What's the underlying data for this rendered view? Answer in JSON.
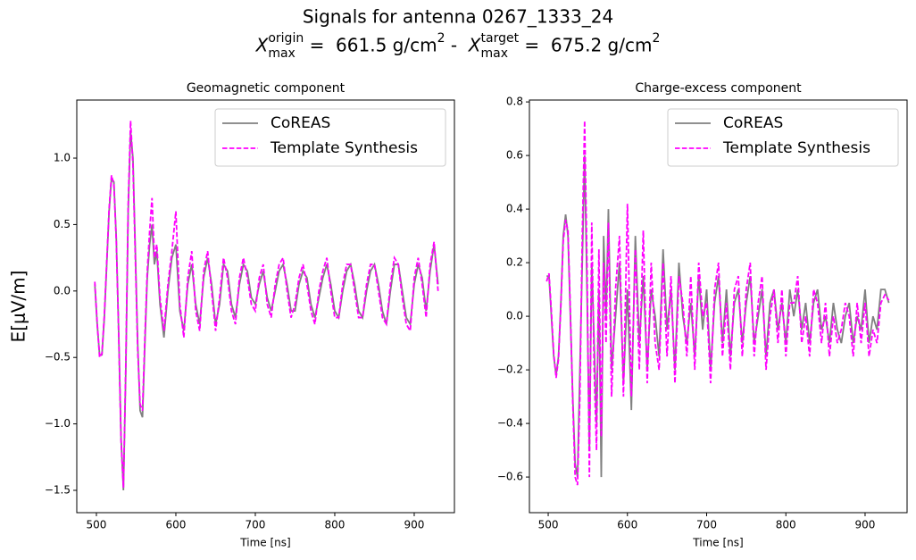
{
  "figure": {
    "title": "Signals for antenna 0267_1333_24",
    "subtitle_parts": [
      {
        "text": "X",
        "style": "italic"
      },
      {
        "text": "origin",
        "style": "sup"
      },
      {
        "text": "max",
        "style": "sub"
      },
      {
        "text": " =  661.5 g/cm",
        "style": "normal"
      },
      {
        "text": "2",
        "style": "sup"
      },
      {
        "text": " -  ",
        "style": "normal"
      },
      {
        "text": "X",
        "style": "italic"
      },
      {
        "text": "target",
        "style": "sup"
      },
      {
        "text": "max",
        "style": "sub"
      },
      {
        "text": " =  675.2 g/cm",
        "style": "normal"
      },
      {
        "text": "2",
        "style": "sup"
      }
    ]
  },
  "chart_data": [
    {
      "type": "line",
      "title": "Geomagnetic component",
      "xlabel": "Time [ns]",
      "ylabel": "E[μV/m]",
      "legend": "upper right",
      "xlim": [
        475.3,
        950.6
      ],
      "ylim": [
        -1.668,
        1.437
      ],
      "xticks": [
        500,
        600,
        700,
        800,
        900
      ],
      "yticks": [
        {
          "value": -1.5,
          "label": "−1.5"
        },
        {
          "value": -1.0,
          "label": "−1.0"
        },
        {
          "value": -0.5,
          "label": "−0.5"
        },
        {
          "value": 0,
          "label": "0.0"
        },
        0.5,
        {
          "value": 1.0,
          "label": "1.0"
        }
      ],
      "x": [
        498,
        501,
        504,
        507,
        510,
        513,
        516,
        519,
        522,
        525,
        528,
        531,
        534,
        537,
        540,
        543,
        546,
        549,
        552,
        555,
        558,
        561,
        564,
        567,
        570,
        573,
        576,
        580,
        585,
        590,
        595,
        600,
        605,
        610,
        615,
        620,
        625,
        630,
        635,
        640,
        645,
        650,
        655,
        660,
        665,
        670,
        675,
        680,
        685,
        690,
        695,
        700,
        705,
        710,
        715,
        720,
        725,
        730,
        735,
        740,
        745,
        750,
        755,
        760,
        765,
        770,
        775,
        780,
        785,
        790,
        795,
        800,
        805,
        810,
        815,
        820,
        825,
        830,
        835,
        840,
        845,
        850,
        855,
        860,
        865,
        870,
        875,
        880,
        885,
        890,
        895,
        900,
        905,
        910,
        915,
        920,
        925,
        930
      ],
      "series": [
        {
          "name": "CoREAS",
          "color": "#808080",
          "dash": "solid",
          "values": [
            0.05,
            -0.25,
            -0.48,
            -0.48,
            -0.2,
            0.2,
            0.6,
            0.85,
            0.82,
            0.4,
            -0.3,
            -1.1,
            -1.5,
            -0.6,
            0.6,
            1.2,
            1.0,
            0.3,
            -0.4,
            -0.9,
            -0.95,
            -0.4,
            0.1,
            0.35,
            0.5,
            0.2,
            0.3,
            -0.1,
            -0.35,
            0.0,
            0.25,
            0.35,
            -0.15,
            -0.3,
            0.05,
            0.2,
            -0.1,
            -0.25,
            0.1,
            0.25,
            0.05,
            -0.25,
            -0.1,
            0.2,
            0.15,
            -0.1,
            -0.2,
            0.05,
            0.2,
            0.15,
            -0.05,
            -0.1,
            0.05,
            0.15,
            -0.05,
            -0.15,
            0.0,
            0.15,
            0.2,
            0.05,
            -0.15,
            -0.15,
            0.05,
            0.15,
            0.1,
            -0.1,
            -0.2,
            -0.05,
            0.1,
            0.2,
            0.05,
            -0.15,
            -0.2,
            0.0,
            0.15,
            0.2,
            0.05,
            -0.15,
            -0.2,
            0.0,
            0.15,
            0.2,
            0.05,
            -0.15,
            -0.25,
            0.0,
            0.2,
            0.2,
            0.0,
            -0.2,
            -0.25,
            0.05,
            0.2,
            0.1,
            -0.15,
            0.15,
            0.35,
            0.05
          ]
        },
        {
          "name": "Template Synthesis",
          "color": "#ff00ff",
          "dash": "dashed",
          "values": [
            0.07,
            -0.24,
            -0.5,
            -0.47,
            -0.18,
            0.22,
            0.62,
            0.87,
            0.8,
            0.38,
            -0.32,
            -1.12,
            -1.48,
            -0.55,
            0.65,
            1.28,
            0.95,
            0.25,
            -0.45,
            -0.85,
            -0.9,
            -0.35,
            0.15,
            0.45,
            0.7,
            0.25,
            0.35,
            -0.05,
            -0.3,
            0.05,
            0.3,
            0.6,
            -0.1,
            -0.35,
            0.1,
            0.3,
            -0.15,
            -0.3,
            0.15,
            0.3,
            0.0,
            -0.3,
            -0.05,
            0.25,
            0.1,
            -0.15,
            -0.25,
            0.1,
            0.25,
            0.1,
            -0.1,
            -0.15,
            0.1,
            0.2,
            -0.1,
            -0.2,
            0.05,
            0.2,
            0.25,
            0.0,
            -0.2,
            -0.1,
            0.1,
            0.2,
            0.05,
            -0.15,
            -0.25,
            0.0,
            0.15,
            0.25,
            0.0,
            -0.2,
            -0.2,
            0.05,
            0.2,
            0.2,
            0.0,
            -0.2,
            -0.2,
            0.05,
            0.2,
            0.2,
            0.0,
            -0.2,
            -0.25,
            0.05,
            0.25,
            0.2,
            -0.05,
            -0.25,
            -0.3,
            0.1,
            0.25,
            0.05,
            -0.2,
            0.2,
            0.37,
            0.0
          ]
        }
      ]
    },
    {
      "type": "line",
      "title": "Charge-excess component",
      "xlabel": "Time [ns]",
      "legend": "upper right",
      "xlim": [
        476.3,
        953
      ],
      "ylim": [
        -0.733,
        0.807
      ],
      "xticks": [
        500,
        600,
        700,
        800,
        900
      ],
      "yticks": [
        {
          "value": -0.6,
          "label": "−0.6"
        },
        {
          "value": -0.4,
          "label": "−0.4"
        },
        {
          "value": -0.2,
          "label": "−0.2"
        },
        {
          "value": 0,
          "label": "0.0"
        },
        0.2,
        0.4,
        0.6,
        0.8
      ],
      "x": [
        498,
        501,
        504,
        507,
        510,
        513,
        516,
        519,
        522,
        525,
        528,
        531,
        534,
        537,
        540,
        543,
        546,
        549,
        552,
        555,
        558,
        561,
        564,
        567,
        570,
        573,
        576,
        580,
        585,
        590,
        595,
        600,
        605,
        610,
        615,
        620,
        625,
        630,
        635,
        640,
        645,
        650,
        655,
        660,
        665,
        670,
        675,
        680,
        685,
        690,
        695,
        700,
        705,
        710,
        715,
        720,
        725,
        730,
        735,
        740,
        745,
        750,
        755,
        760,
        765,
        770,
        775,
        780,
        785,
        790,
        795,
        800,
        805,
        810,
        815,
        820,
        825,
        830,
        835,
        840,
        845,
        850,
        855,
        860,
        865,
        870,
        875,
        880,
        885,
        890,
        895,
        900,
        905,
        910,
        915,
        920,
        925,
        930
      ],
      "series": [
        {
          "name": "CoREAS",
          "color": "#808080",
          "dash": "solid",
          "values": [
            0.15,
            0.15,
            0.0,
            -0.15,
            -0.22,
            -0.15,
            0.05,
            0.3,
            0.38,
            0.3,
            0.0,
            -0.3,
            -0.55,
            -0.6,
            -0.2,
            0.2,
            0.6,
            0.1,
            -0.5,
            0.2,
            -0.1,
            -0.4,
            0.1,
            -0.6,
            0.3,
            0.0,
            0.4,
            -0.2,
            0.0,
            0.2,
            -0.25,
            0.1,
            -0.35,
            0.3,
            -0.1,
            0.15,
            -0.2,
            0.1,
            0.0,
            -0.15,
            0.25,
            -0.05,
            0.1,
            -0.2,
            0.2,
            0.0,
            -0.1,
            0.05,
            -0.15,
            0.15,
            -0.05,
            0.1,
            -0.2,
            0.05,
            0.15,
            -0.1,
            0.1,
            -0.15,
            0.05,
            0.1,
            -0.1,
            0.05,
            0.15,
            -0.1,
            0.0,
            0.1,
            -0.15,
            0.05,
            0.1,
            -0.05,
            0.05,
            -0.1,
            0.1,
            0.0,
            0.1,
            -0.05,
            0.05,
            -0.1,
            0.05,
            0.1,
            -0.05,
            0.0,
            -0.1,
            0.05,
            -0.05,
            -0.1,
            0.0,
            0.05,
            -0.1,
            0.0,
            -0.05,
            0.1,
            -0.1,
            0.0,
            -0.05,
            0.1,
            0.1,
            0.05
          ]
        },
        {
          "name": "Template Synthesis",
          "color": "#ff00ff",
          "dash": "dashed",
          "values": [
            0.13,
            0.16,
            0.02,
            -0.14,
            -0.23,
            -0.16,
            0.04,
            0.28,
            0.36,
            0.32,
            0.02,
            -0.32,
            -0.6,
            -0.63,
            -0.3,
            0.3,
            0.73,
            0.2,
            -0.6,
            0.35,
            -0.2,
            -0.5,
            0.25,
            -0.45,
            0.2,
            -0.1,
            0.35,
            -0.3,
            0.1,
            0.3,
            -0.3,
            0.42,
            -0.3,
            0.25,
            -0.2,
            0.32,
            -0.25,
            0.2,
            -0.1,
            -0.2,
            0.2,
            -0.15,
            0.15,
            -0.25,
            0.15,
            0.05,
            -0.15,
            0.15,
            -0.2,
            0.2,
            0.0,
            0.05,
            -0.25,
            0.1,
            0.2,
            -0.15,
            0.05,
            -0.2,
            0.1,
            0.15,
            -0.15,
            0.1,
            0.2,
            -0.15,
            0.05,
            0.15,
            -0.2,
            0.0,
            0.1,
            -0.1,
            0.1,
            -0.15,
            0.05,
            0.05,
            0.15,
            -0.1,
            0.0,
            -0.15,
            0.1,
            0.05,
            -0.1,
            0.05,
            -0.15,
            0.0,
            -0.1,
            -0.05,
            0.05,
            0.0,
            -0.15,
            0.05,
            -0.1,
            0.05,
            -0.15,
            -0.05,
            -0.1,
            0.05,
            0.08,
            0.06
          ]
        }
      ]
    }
  ]
}
